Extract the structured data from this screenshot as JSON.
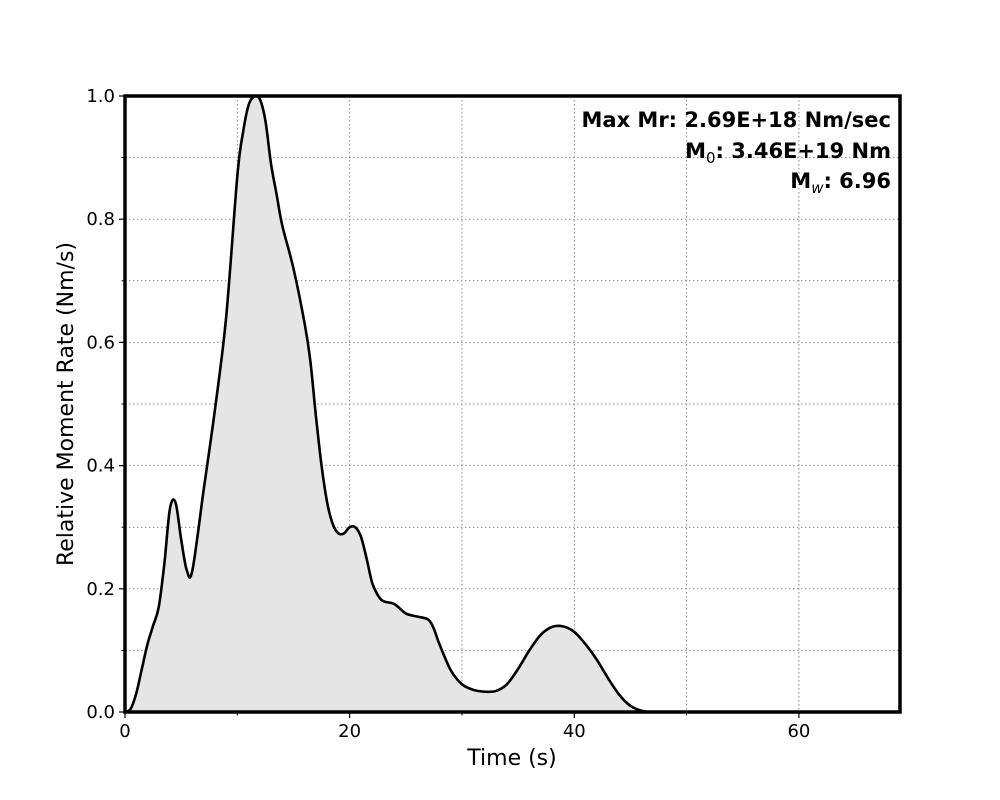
{
  "chart_data": {
    "type": "area",
    "xlabel": "Time (s)",
    "ylabel": "Relative Moment Rate (Nm/s)",
    "xlim": [
      0,
      69
    ],
    "ylim": [
      0,
      1.0
    ],
    "xticks": [
      0,
      20,
      40,
      60
    ],
    "xtick_labels": [
      "0",
      "20",
      "40",
      "60"
    ],
    "x_minor_ticks": [
      10,
      30,
      50
    ],
    "yticks": [
      0.0,
      0.2,
      0.4,
      0.6,
      0.8,
      1.0
    ],
    "ytick_labels": [
      "0.0",
      "0.2",
      "0.4",
      "0.6",
      "0.8",
      "1.0"
    ],
    "y_minor_ticks": [
      0.1,
      0.3,
      0.5,
      0.7,
      0.9
    ],
    "grid": true,
    "colors": {
      "line": "#000000",
      "fill": "#e5e5e5",
      "grid": "#888888"
    },
    "annotations": {
      "max_mr_label": "Max Mr: 2.69E+18 Nm/sec",
      "m0_prefix": "M",
      "m0_sub": "0",
      "m0_value": ": 3.46E+19 Nm",
      "mw_prefix": "M",
      "mw_sub": "w",
      "mw_value": ": 6.96"
    },
    "series": [
      {
        "x": [
          0,
          0.5,
          1,
          1.5,
          2,
          2.5,
          3,
          3.5,
          4,
          4.5,
          5,
          5.5,
          6,
          7,
          8,
          9,
          10,
          10.5,
          11,
          11.5,
          12,
          12.5,
          13,
          13.5,
          14,
          15,
          16,
          16.5,
          17,
          17.5,
          18,
          18.5,
          19,
          19.5,
          20,
          20.5,
          21,
          21.5,
          22,
          22.5,
          23,
          24,
          25,
          26,
          27,
          27.5,
          28,
          29,
          30,
          31,
          32,
          33,
          34,
          35,
          36,
          37,
          38,
          39,
          40,
          41,
          42,
          43,
          44,
          45,
          46,
          47,
          50,
          55,
          60,
          65,
          69
        ],
        "y": [
          0.0,
          0.005,
          0.03,
          0.07,
          0.11,
          0.14,
          0.17,
          0.24,
          0.33,
          0.34,
          0.28,
          0.23,
          0.23,
          0.36,
          0.49,
          0.64,
          0.87,
          0.94,
          0.985,
          0.999,
          0.995,
          0.96,
          0.89,
          0.84,
          0.79,
          0.72,
          0.63,
          0.57,
          0.48,
          0.4,
          0.34,
          0.305,
          0.29,
          0.29,
          0.3,
          0.3,
          0.285,
          0.25,
          0.21,
          0.19,
          0.18,
          0.175,
          0.16,
          0.155,
          0.15,
          0.135,
          0.11,
          0.068,
          0.045,
          0.036,
          0.033,
          0.034,
          0.045,
          0.07,
          0.1,
          0.125,
          0.138,
          0.139,
          0.13,
          0.11,
          0.085,
          0.055,
          0.028,
          0.01,
          0.002,
          0.0,
          0.0,
          0.0,
          0.0,
          0.0,
          0.0
        ]
      }
    ]
  }
}
